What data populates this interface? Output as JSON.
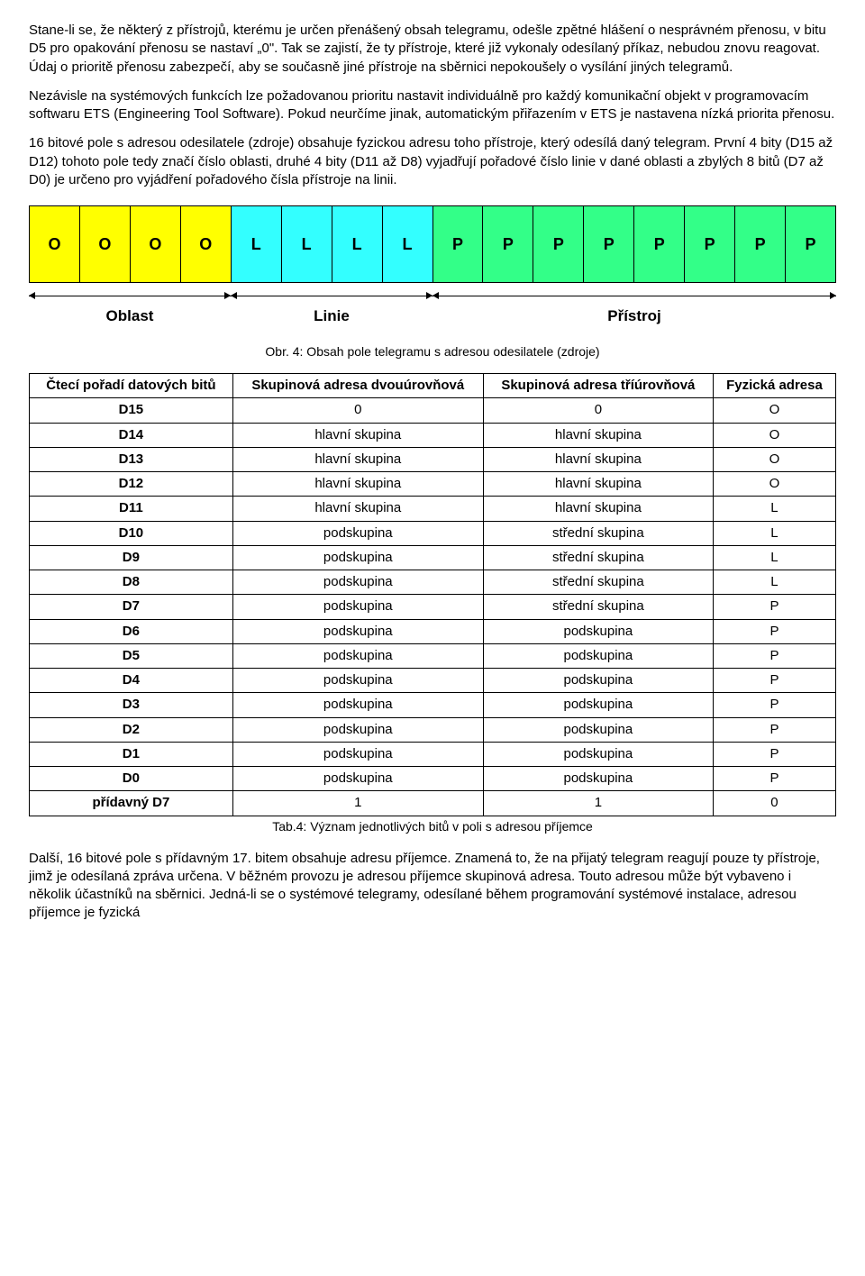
{
  "paragraphs": {
    "p1": "Stane-li se, že některý z přístrojů, kterému je určen přenášený obsah telegramu, odešle zpětné hlášení o nesprávném přenosu, v bitu D5 pro opakování přenosu se nastaví „0\". Tak se zajistí, že ty přístroje, které již vykonaly odesílaný příkaz, nebudou znovu reagovat. Údaj o prioritě přenosu zabezpečí, aby se současně jiné přístroje na sběrnici nepokoušely o vysílání jiných telegramů.",
    "p2": "Nezávisle na systémových funkcích lze požadovanou prioritu nastavit individuálně pro každý komunikační objekt v programovacím softwaru ETS (Engineering Tool Software). Pokud neurčíme jinak, automatickým přiřazením v ETS je nastavena nízká priorita přenosu.",
    "p3": "16 bitové pole s adresou odesilatele (zdroje) obsahuje fyzickou adresu toho přístroje, který odesílá daný telegram. První 4 bity (D15 až D12) tohoto pole tedy značí číslo oblasti, druhé 4 bity (D11 až D8) vyjadřují pořadové číslo linie v dané oblasti a zbylých 8 bitů (D7 až D0) je určeno pro vyjádření pořadového čísla přístroje na linii.",
    "p4": "Další, 16 bitové pole s přídavným 17. bitem obsahuje adresu příjemce. Znamená to, že na přijatý telegram reagují pouze ty přístroje, jimž je odesílaná zpráva určena. V běžném provozu je adresou příjemce skupinová adresa. Touto adresou může být vybaveno i několik účastníků na sběrnici. Jedná-li se o systémové telegramy, odesílané během programování systémové instalace, adresou příjemce je fyzická"
  },
  "diagram": {
    "bits": [
      {
        "label": "O",
        "color": "#ffff00"
      },
      {
        "label": "O",
        "color": "#ffff00"
      },
      {
        "label": "O",
        "color": "#ffff00"
      },
      {
        "label": "O",
        "color": "#ffff00"
      },
      {
        "label": "L",
        "color": "#33ffff"
      },
      {
        "label": "L",
        "color": "#33ffff"
      },
      {
        "label": "L",
        "color": "#33ffff"
      },
      {
        "label": "L",
        "color": "#33ffff"
      },
      {
        "label": "P",
        "color": "#33ff88"
      },
      {
        "label": "P",
        "color": "#33ff88"
      },
      {
        "label": "P",
        "color": "#33ff88"
      },
      {
        "label": "P",
        "color": "#33ff88"
      },
      {
        "label": "P",
        "color": "#33ff88"
      },
      {
        "label": "P",
        "color": "#33ff88"
      },
      {
        "label": "P",
        "color": "#33ff88"
      },
      {
        "label": "P",
        "color": "#33ff88"
      }
    ],
    "groups": [
      {
        "label": "Oblast",
        "span": 4
      },
      {
        "label": "Linie",
        "span": 4
      },
      {
        "label": "Přístroj",
        "span": 8
      }
    ],
    "caption": "Obr. 4: Obsah pole telegramu s adresou odesilatele (zdroje)"
  },
  "table": {
    "headers": [
      "Čtecí pořadí datových bitů",
      "Skupinová adresa dvouúrovňová",
      "Skupinová adresa tříúrovňová",
      "Fyzická adresa"
    ],
    "rows": [
      [
        "D15",
        "0",
        "0",
        "O"
      ],
      [
        "D14",
        "hlavní skupina",
        "hlavní skupina",
        "O"
      ],
      [
        "D13",
        "hlavní skupina",
        "hlavní skupina",
        "O"
      ],
      [
        "D12",
        "hlavní skupina",
        "hlavní skupina",
        "O"
      ],
      [
        "D11",
        "hlavní skupina",
        "hlavní skupina",
        "L"
      ],
      [
        "D10",
        "podskupina",
        "střední skupina",
        "L"
      ],
      [
        "D9",
        "podskupina",
        "střední skupina",
        "L"
      ],
      [
        "D8",
        "podskupina",
        "střední skupina",
        "L"
      ],
      [
        "D7",
        "podskupina",
        "střední skupina",
        "P"
      ],
      [
        "D6",
        "podskupina",
        "podskupina",
        "P"
      ],
      [
        "D5",
        "podskupina",
        "podskupina",
        "P"
      ],
      [
        "D4",
        "podskupina",
        "podskupina",
        "P"
      ],
      [
        "D3",
        "podskupina",
        "podskupina",
        "P"
      ],
      [
        "D2",
        "podskupina",
        "podskupina",
        "P"
      ],
      [
        "D1",
        "podskupina",
        "podskupina",
        "P"
      ],
      [
        "D0",
        "podskupina",
        "podskupina",
        "P"
      ],
      [
        "přídavný D7",
        "1",
        "1",
        "0"
      ]
    ],
    "caption": "Tab.4: Význam jednotlivých bitů v poli s adresou příjemce"
  }
}
